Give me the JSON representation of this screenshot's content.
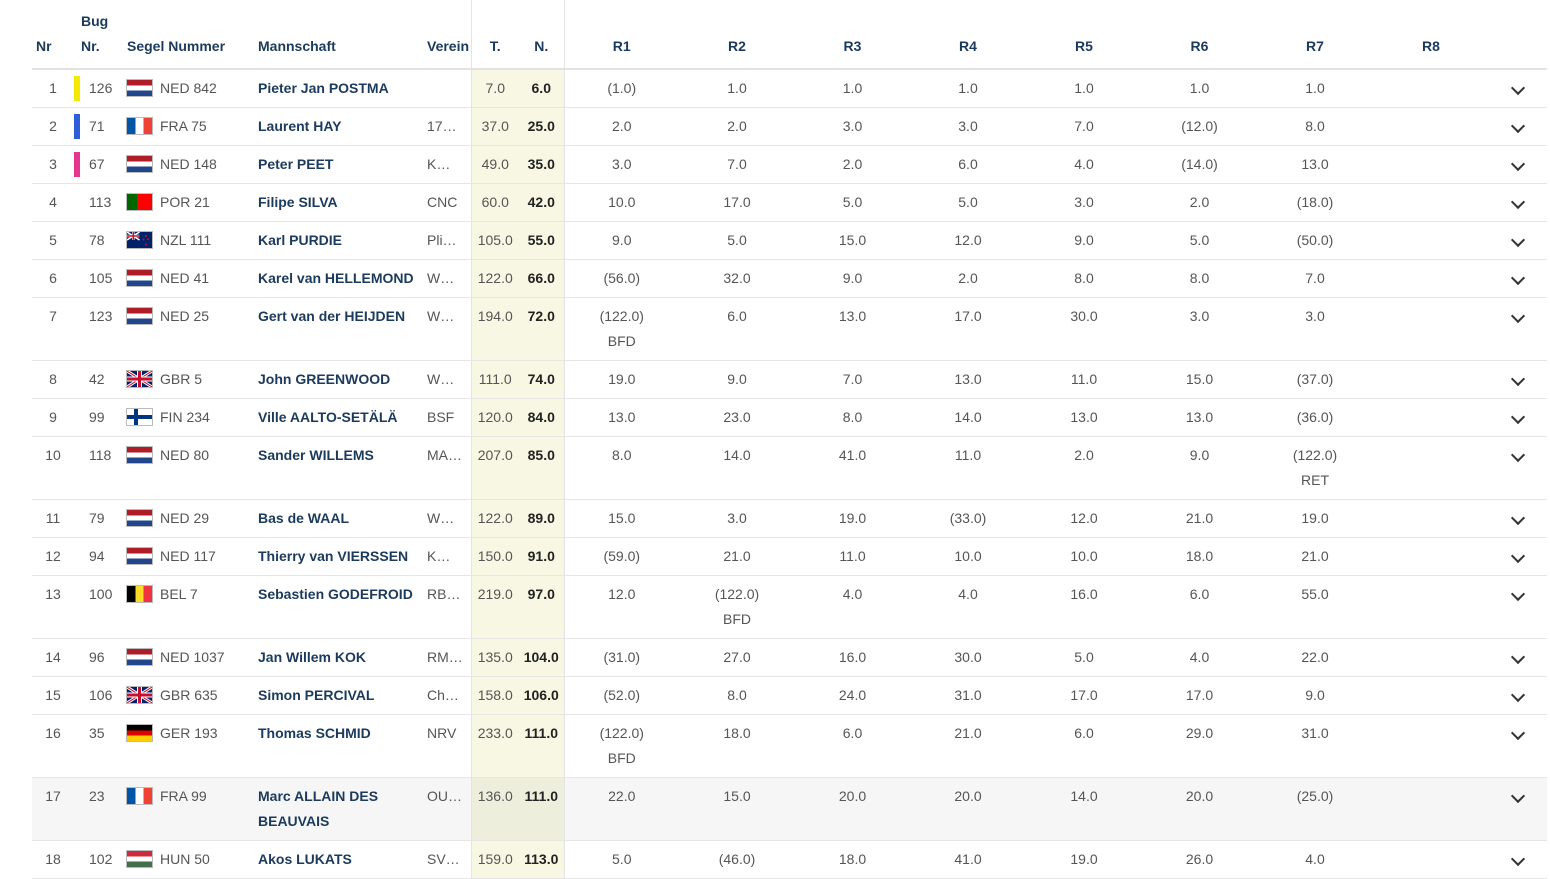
{
  "headers": {
    "nr": "Nr",
    "bug": "Bug\nNr.",
    "segel": "Segel Nummer",
    "mannschaft": "Mannschaft",
    "verein": "Verein",
    "total": "T.",
    "net": "N.",
    "races": [
      "R1",
      "R2",
      "R3",
      "R4",
      "R5",
      "R6",
      "R7",
      "R8"
    ]
  },
  "colors": {
    "yellow": "#f5e900",
    "blue": "#2f5fd8",
    "pink": "#e6358f"
  },
  "rows": [
    {
      "nr": "1",
      "bar": "#f5e900",
      "bug": "126",
      "flag": "NED",
      "sail": "NED 842",
      "name": "Pieter Jan POSTMA",
      "club": "",
      "t": "7.0",
      "n": "6.0",
      "r": [
        "(1.0)",
        "1.0",
        "1.0",
        "1.0",
        "1.0",
        "1.0",
        "1.0",
        ""
      ]
    },
    {
      "nr": "2",
      "bar": "#2f5fd8",
      "bug": "71",
      "flag": "FRA",
      "sail": "FRA 75",
      "name": "Laurent HAY",
      "club": "17…",
      "t": "37.0",
      "n": "25.0",
      "r": [
        "2.0",
        "2.0",
        "3.0",
        "3.0",
        "7.0",
        "(12.0)",
        "8.0",
        ""
      ]
    },
    {
      "nr": "3",
      "bar": "#e6358f",
      "bug": "67",
      "flag": "NED",
      "sail": "NED 148",
      "name": "Peter PEET",
      "club": "K…",
      "t": "49.0",
      "n": "35.0",
      "r": [
        "3.0",
        "7.0",
        "2.0",
        "6.0",
        "4.0",
        "(14.0)",
        "13.0",
        ""
      ]
    },
    {
      "nr": "4",
      "bar": "",
      "bug": "113",
      "flag": "POR",
      "sail": "POR 21",
      "name": "Filipe SILVA",
      "club": "CNC",
      "t": "60.0",
      "n": "42.0",
      "r": [
        "10.0",
        "17.0",
        "5.0",
        "5.0",
        "3.0",
        "2.0",
        "(18.0)",
        ""
      ]
    },
    {
      "nr": "5",
      "bar": "",
      "bug": "78",
      "flag": "NZL",
      "sail": "NZL 111",
      "name": "Karl PURDIE",
      "club": "Pli…",
      "t": "105.0",
      "n": "55.0",
      "r": [
        "9.0",
        "5.0",
        "15.0",
        "12.0",
        "9.0",
        "5.0",
        "(50.0)",
        ""
      ]
    },
    {
      "nr": "6",
      "bar": "",
      "bug": "105",
      "flag": "NED",
      "sail": "NED 41",
      "name": "Karel van HELLEMOND",
      "club": "W…",
      "t": "122.0",
      "n": "66.0",
      "r": [
        "(56.0)",
        "32.0",
        "9.0",
        "2.0",
        "8.0",
        "8.0",
        "7.0",
        ""
      ]
    },
    {
      "nr": "7",
      "bar": "",
      "bug": "123",
      "flag": "NED",
      "sail": "NED 25",
      "name": "Gert van der HEIJDEN",
      "club": "W…",
      "t": "194.0",
      "n": "72.0",
      "r": [
        "(122.0)\nBFD",
        "6.0",
        "13.0",
        "17.0",
        "30.0",
        "3.0",
        "3.0",
        ""
      ]
    },
    {
      "nr": "8",
      "bar": "",
      "bug": "42",
      "flag": "GBR",
      "sail": "GBR 5",
      "name": "John GREENWOOD",
      "club": "W…",
      "t": "111.0",
      "n": "74.0",
      "r": [
        "19.0",
        "9.0",
        "7.0",
        "13.0",
        "11.0",
        "15.0",
        "(37.0)",
        ""
      ]
    },
    {
      "nr": "9",
      "bar": "",
      "bug": "99",
      "flag": "FIN",
      "sail": "FIN 234",
      "name": "Ville AALTO-SETÄLÄ",
      "club": "BSF",
      "t": "120.0",
      "n": "84.0",
      "r": [
        "13.0",
        "23.0",
        "8.0",
        "14.0",
        "13.0",
        "13.0",
        "(36.0)",
        ""
      ]
    },
    {
      "nr": "10",
      "bar": "",
      "bug": "118",
      "flag": "NED",
      "sail": "NED 80",
      "name": "Sander WILLEMS",
      "club": "MA…",
      "t": "207.0",
      "n": "85.0",
      "r": [
        "8.0",
        "14.0",
        "41.0",
        "11.0",
        "2.0",
        "9.0",
        "(122.0)\nRET",
        ""
      ]
    },
    {
      "nr": "11",
      "bar": "",
      "bug": "79",
      "flag": "NED",
      "sail": "NED 29",
      "name": "Bas de WAAL",
      "club": "W…",
      "t": "122.0",
      "n": "89.0",
      "r": [
        "15.0",
        "3.0",
        "19.0",
        "(33.0)",
        "12.0",
        "21.0",
        "19.0",
        ""
      ]
    },
    {
      "nr": "12",
      "bar": "",
      "bug": "94",
      "flag": "NED",
      "sail": "NED 117",
      "name": "Thierry van VIERSSEN",
      "club": "K…",
      "t": "150.0",
      "n": "91.0",
      "r": [
        "(59.0)",
        "21.0",
        "11.0",
        "10.0",
        "10.0",
        "18.0",
        "21.0",
        ""
      ]
    },
    {
      "nr": "13",
      "bar": "",
      "bug": "100",
      "flag": "BEL",
      "sail": "BEL 7",
      "name": "Sebastien GODEFROID",
      "club": "RB…",
      "t": "219.0",
      "n": "97.0",
      "r": [
        "12.0",
        "(122.0)\nBFD",
        "4.0",
        "4.0",
        "16.0",
        "6.0",
        "55.0",
        ""
      ]
    },
    {
      "nr": "14",
      "bar": "",
      "bug": "96",
      "flag": "NED",
      "sail": "NED 1037",
      "name": "Jan Willem KOK",
      "club": "RM…",
      "t": "135.0",
      "n": "104.0",
      "r": [
        "(31.0)",
        "27.0",
        "16.0",
        "30.0",
        "5.0",
        "4.0",
        "22.0",
        ""
      ]
    },
    {
      "nr": "15",
      "bar": "",
      "bug": "106",
      "flag": "GBR",
      "sail": "GBR 635",
      "name": "Simon PERCIVAL",
      "club": "Ch…",
      "t": "158.0",
      "n": "106.0",
      "r": [
        "(52.0)",
        "8.0",
        "24.0",
        "31.0",
        "17.0",
        "17.0",
        "9.0",
        ""
      ]
    },
    {
      "nr": "16",
      "bar": "",
      "bug": "35",
      "flag": "GER",
      "sail": "GER 193",
      "name": "Thomas SCHMID",
      "club": "NRV",
      "t": "233.0",
      "n": "111.0",
      "r": [
        "(122.0)\nBFD",
        "18.0",
        "6.0",
        "21.0",
        "6.0",
        "29.0",
        "31.0",
        ""
      ]
    },
    {
      "nr": "17",
      "bar": "",
      "bug": "23",
      "flag": "FRA",
      "sail": "FRA 99",
      "name": "Marc ALLAIN DES BEAUVAIS",
      "club": "OU…",
      "t": "136.0",
      "n": "111.0",
      "r": [
        "22.0",
        "15.0",
        "20.0",
        "20.0",
        "14.0",
        "20.0",
        "(25.0)",
        ""
      ],
      "alt": true
    },
    {
      "nr": "18",
      "bar": "",
      "bug": "102",
      "flag": "HUN",
      "sail": "HUN 50",
      "name": "Akos LUKATS",
      "club": "SV…",
      "t": "159.0",
      "n": "113.0",
      "r": [
        "5.0",
        "(46.0)",
        "18.0",
        "41.0",
        "19.0",
        "26.0",
        "4.0",
        ""
      ]
    }
  ]
}
